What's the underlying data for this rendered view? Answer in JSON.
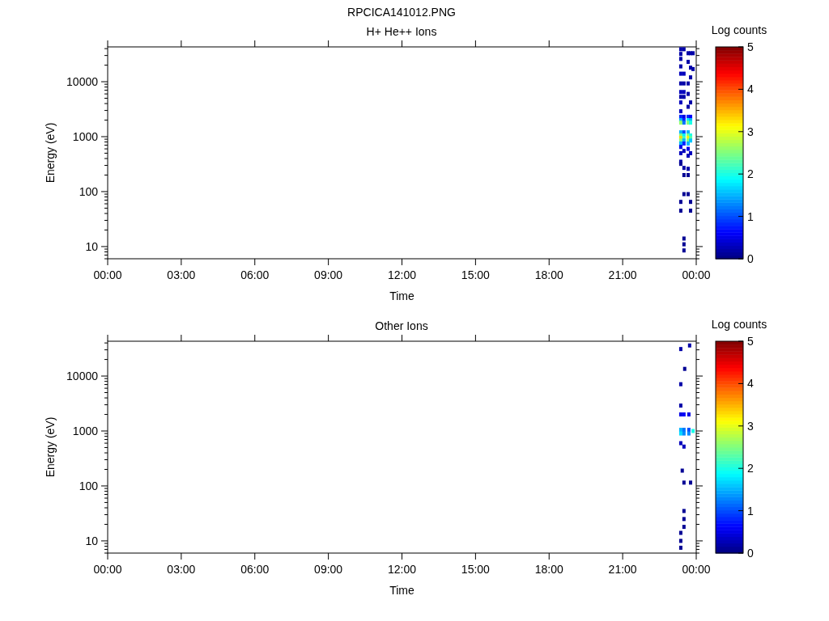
{
  "chart_data": [
    {
      "type": "scatter",
      "title": "RPCICA141012.PNG",
      "subtitle": "H+ He++ Ions",
      "xlabel": "Time",
      "ylabel": "Energy (eV)",
      "clabel": "Log counts",
      "log": "y",
      "marker": "square",
      "xlim": [
        0,
        24
      ],
      "xticks": [
        {
          "value": 0,
          "label": "00:00"
        },
        {
          "value": 3,
          "label": "03:00"
        },
        {
          "value": 6,
          "label": "06:00"
        },
        {
          "value": 9,
          "label": "09:00"
        },
        {
          "value": 12,
          "label": "12:00"
        },
        {
          "value": 15,
          "label": "15:00"
        },
        {
          "value": 18,
          "label": "18:00"
        },
        {
          "value": 21,
          "label": "21:00"
        },
        {
          "value": 24,
          "label": "00:00"
        }
      ],
      "ylim": [
        6,
        43000
      ],
      "yticks": [
        10,
        100,
        1000,
        10000
      ],
      "clim": [
        0,
        5
      ],
      "cticks": [
        0,
        1,
        2,
        3,
        4,
        5
      ],
      "x": [
        23.37,
        23.37,
        23.37,
        23.37,
        23.37,
        23.37,
        23.37,
        23.37,
        23.37,
        23.37,
        23.37,
        23.37,
        23.37,
        23.37,
        23.37,
        23.37,
        23.37,
        23.37,
        23.37,
        23.37,
        23.37,
        23.37,
        23.37,
        23.37,
        23.5,
        23.5,
        23.5,
        23.5,
        23.5,
        23.5,
        23.5,
        23.5,
        23.5,
        23.5,
        23.5,
        23.5,
        23.5,
        23.5,
        23.5,
        23.5,
        23.5,
        23.5,
        23.5,
        23.5,
        23.67,
        23.67,
        23.67,
        23.67,
        23.67,
        23.67,
        23.67,
        23.67,
        23.67,
        23.67,
        23.67,
        23.67,
        23.67,
        23.67,
        23.67,
        23.67,
        23.67,
        23.67,
        23.77,
        23.77,
        23.77,
        23.77,
        23.77,
        23.77,
        23.77,
        23.77,
        23.77,
        23.77,
        23.77,
        23.77,
        23.77,
        23.87,
        23.87
      ],
      "values": [
        39000,
        32000,
        26000,
        19000,
        14000,
        9300,
        6500,
        5300,
        4200,
        2900,
        2300,
        2000,
        1800,
        1200,
        1050,
        950,
        850,
        750,
        650,
        500,
        350,
        320,
        65,
        45,
        39000,
        14000,
        9300,
        6500,
        5300,
        2300,
        2000,
        1800,
        1200,
        1050,
        950,
        850,
        750,
        550,
        270,
        200,
        90,
        14,
        11,
        8.5,
        33000,
        23000,
        9300,
        6000,
        3500,
        2300,
        2000,
        1800,
        1200,
        1050,
        950,
        850,
        750,
        600,
        450,
        260,
        200,
        90,
        33000,
        18000,
        12000,
        4200,
        2300,
        2000,
        1800,
        1050,
        950,
        850,
        500,
        65,
        45,
        33000,
        17000
      ],
      "cvalues": [
        0.2,
        0.2,
        0.2,
        0.2,
        0.3,
        0.2,
        0.3,
        0.2,
        0.3,
        0.3,
        0.8,
        1.5,
        2.6,
        1.5,
        2.5,
        3.3,
        2.5,
        1.5,
        0.5,
        0.3,
        0.2,
        0.1,
        0.1,
        0.1,
        0.2,
        0.3,
        0.2,
        0.3,
        0.2,
        0.5,
        0.8,
        1.2,
        1,
        1.8,
        2.2,
        1.5,
        0.8,
        0.3,
        0.2,
        0.1,
        0.1,
        0.1,
        0.1,
        0.1,
        0.2,
        0.2,
        0.2,
        0.2,
        0.2,
        0.8,
        1.8,
        2.5,
        1.5,
        2.5,
        3.2,
        2.5,
        1.5,
        0.5,
        0.3,
        0.2,
        0.1,
        0.1,
        0.2,
        0.2,
        0.2,
        0.2,
        0.6,
        1.5,
        2,
        2,
        2.3,
        1.6,
        0.3,
        0.1,
        0.1,
        0.2,
        0.2
      ]
    },
    {
      "type": "scatter",
      "title": "Other Ions",
      "xlabel": "Time",
      "ylabel": "Energy (eV)",
      "clabel": "Log counts",
      "log": "y",
      "marker": "square",
      "xlim": [
        0,
        24
      ],
      "xticks": [
        {
          "value": 0,
          "label": "00:00"
        },
        {
          "value": 3,
          "label": "03:00"
        },
        {
          "value": 6,
          "label": "06:00"
        },
        {
          "value": 9,
          "label": "09:00"
        },
        {
          "value": 12,
          "label": "12:00"
        },
        {
          "value": 15,
          "label": "15:00"
        },
        {
          "value": 18,
          "label": "18:00"
        },
        {
          "value": 21,
          "label": "21:00"
        },
        {
          "value": 24,
          "label": "00:00"
        }
      ],
      "ylim": [
        6,
        43000
      ],
      "yticks": [
        10,
        100,
        1000,
        10000
      ],
      "clim": [
        0,
        5
      ],
      "cticks": [
        0,
        1,
        2,
        3,
        4,
        5
      ],
      "x": [
        23.73,
        23.37,
        23.53,
        23.37,
        23.37,
        23.37,
        23.5,
        23.7,
        23.37,
        23.5,
        23.7,
        23.87,
        23.37,
        23.5,
        23.7,
        23.37,
        23.5,
        23.43,
        23.5,
        23.77,
        23.5,
        23.5,
        23.5,
        23.37,
        23.37,
        23.37
      ],
      "values": [
        36000,
        31000,
        13500,
        7100,
        2900,
        2000,
        2000,
        2000,
        1050,
        1050,
        1050,
        1000,
        900,
        900,
        900,
        600,
        520,
        190,
        115,
        115,
        35,
        25,
        18,
        14,
        10,
        7.5
      ],
      "cvalues": [
        0.2,
        0.2,
        0.1,
        0.2,
        0.2,
        0.5,
        0.6,
        0.5,
        1.5,
        1.2,
        1.0,
        2.0,
        1.7,
        1.3,
        1.3,
        0.3,
        0.3,
        0.1,
        0.1,
        0.1,
        0.1,
        0.1,
        0.1,
        0.1,
        0.1,
        0.1
      ]
    }
  ]
}
